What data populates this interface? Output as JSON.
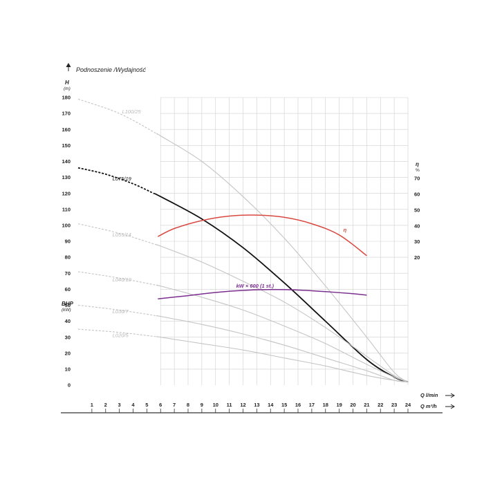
{
  "chart_data": {
    "type": "line",
    "title": "Podnoszenie /Wydajność",
    "ylabel_left": "H",
    "ylabel_left_unit": "(m)",
    "ylabel_bhp": "BHP",
    "ylabel_bhp_unit": "(kW)",
    "ylabel_right": "η",
    "ylabel_right_unit": "%",
    "xlabel_1": "Q l/min",
    "xlabel_2": "Q m³/h",
    "ylim": [
      0,
      180
    ],
    "xlim": [
      0,
      24
    ],
    "y_ticks": [
      0,
      10,
      20,
      30,
      40,
      50,
      60,
      70,
      80,
      90,
      100,
      110,
      120,
      130,
      140,
      150,
      160,
      170,
      180
    ],
    "x_ticks": [
      1,
      2,
      3,
      4,
      5,
      6,
      7,
      8,
      9,
      10,
      11,
      12,
      13,
      14,
      15,
      16,
      17,
      18,
      19,
      20,
      21,
      22,
      23,
      24
    ],
    "eta_ticks": [
      20,
      30,
      40,
      50,
      60,
      70
    ],
    "grid": true,
    "grid_x_from": 6,
    "colors": {
      "highlight": "#111111",
      "other": "#c4c4c4",
      "efficiency": "#d9483f",
      "power": "#7a2e8e",
      "grid": "#cfcfcf",
      "axis": "#333333"
    },
    "series": [
      {
        "name": "L100/25",
        "role": "other",
        "dashed_until": 5.8,
        "label_at": [
          3.2,
          170
        ],
        "points": [
          [
            0,
            179
          ],
          [
            3,
            170
          ],
          [
            6,
            156
          ],
          [
            9,
            140
          ],
          [
            12,
            118
          ],
          [
            15,
            92
          ],
          [
            18,
            62
          ],
          [
            21,
            30
          ],
          [
            23,
            8
          ],
          [
            24,
            2
          ]
        ]
      },
      {
        "name": "L075/19",
        "role": "highlight",
        "dashed_until": 5.5,
        "label_at": [
          2.5,
          128
        ],
        "points": [
          [
            0,
            136
          ],
          [
            2,
            132
          ],
          [
            4,
            126
          ],
          [
            6,
            118
          ],
          [
            9,
            104
          ],
          [
            12,
            86
          ],
          [
            15,
            64
          ],
          [
            18,
            40
          ],
          [
            21,
            16
          ],
          [
            23,
            5
          ],
          [
            24,
            2
          ]
        ]
      },
      {
        "name": "L055/14",
        "role": "other",
        "dashed_until": 5.8,
        "label_at": [
          2.5,
          93
        ],
        "points": [
          [
            0,
            101
          ],
          [
            3,
            95
          ],
          [
            6,
            87
          ],
          [
            9,
            77
          ],
          [
            12,
            65
          ],
          [
            15,
            52
          ],
          [
            18,
            36
          ],
          [
            21,
            18
          ],
          [
            23,
            6
          ],
          [
            24,
            2
          ]
        ]
      },
      {
        "name": "L040/10",
        "role": "other",
        "dashed_until": 5.8,
        "label_at": [
          2.5,
          65
        ],
        "points": [
          [
            0,
            71
          ],
          [
            3,
            67
          ],
          [
            6,
            62
          ],
          [
            9,
            55
          ],
          [
            12,
            47
          ],
          [
            15,
            37
          ],
          [
            18,
            26
          ],
          [
            21,
            13
          ],
          [
            23,
            5
          ],
          [
            24,
            2
          ]
        ]
      },
      {
        "name": "L030/7",
        "role": "other",
        "dashed_until": 5.8,
        "label_at": [
          2.5,
          45
        ],
        "points": [
          [
            0,
            50
          ],
          [
            3,
            47
          ],
          [
            6,
            43
          ],
          [
            9,
            38
          ],
          [
            12,
            32
          ],
          [
            15,
            25
          ],
          [
            18,
            17
          ],
          [
            21,
            9
          ],
          [
            23,
            3
          ],
          [
            24,
            2
          ]
        ]
      },
      {
        "name": "L020/5",
        "role": "other",
        "dashed_until": 5.8,
        "label_at": [
          2.5,
          30
        ],
        "points": [
          [
            0,
            35
          ],
          [
            3,
            33
          ],
          [
            6,
            30
          ],
          [
            9,
            26
          ],
          [
            12,
            22
          ],
          [
            15,
            17
          ],
          [
            18,
            12
          ],
          [
            21,
            6
          ],
          [
            23,
            3
          ],
          [
            24,
            2
          ]
        ]
      },
      {
        "name": "η",
        "role": "efficiency",
        "label_at": [
          19.3,
          96
        ],
        "points": [
          [
            5.8,
            93
          ],
          [
            7,
            98
          ],
          [
            9,
            103
          ],
          [
            11,
            105.8
          ],
          [
            13,
            106.4
          ],
          [
            15,
            105
          ],
          [
            17,
            101
          ],
          [
            19,
            94
          ],
          [
            21,
            81
          ]
        ]
      },
      {
        "name": "kW × 600 (1 st.)",
        "role": "power",
        "label_at": [
          11.5,
          61
        ],
        "points": [
          [
            5.8,
            54
          ],
          [
            8,
            56
          ],
          [
            10,
            58
          ],
          [
            12,
            59.3
          ],
          [
            14,
            59.8
          ],
          [
            16,
            59.5
          ],
          [
            18,
            58.5
          ],
          [
            20,
            57.2
          ],
          [
            21,
            56.3
          ]
        ]
      }
    ]
  }
}
